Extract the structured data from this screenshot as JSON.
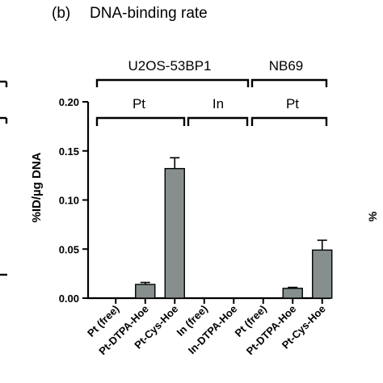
{
  "panel_label": "(b)",
  "title": "DNA-binding rate",
  "groups": {
    "cell_lines": [
      "U2OS-53BP1",
      "NB69"
    ],
    "elements": [
      "Pt",
      "In",
      "Pt"
    ]
  },
  "right_edge_text": "%",
  "colors": {
    "bar": "#868e8e",
    "axis": "#000000"
  },
  "chart_data": {
    "type": "bar",
    "ylabel": "%ID/µg DNA",
    "ylim": [
      0,
      0.2
    ],
    "yticks": [
      0.0,
      0.05,
      0.1,
      0.15,
      0.2
    ],
    "ytick_labels": [
      "0.00",
      "0.05",
      "0.10",
      "0.15",
      "0.20"
    ],
    "categories": [
      "Pt (free)",
      "Pt-DTPA-Hoe",
      "Pt-Cys-Hoe",
      "In (free)",
      "In-DTPA-Hoe",
      "Pt (free)",
      "Pt-DTPA-Hoe",
      "Pt-Cys-Hoe"
    ],
    "values": [
      0.0,
      0.014,
      0.132,
      0.0,
      0.0,
      0.0,
      0.01,
      0.049
    ],
    "errors": [
      0.0,
      0.002,
      0.011,
      0.0,
      0.0,
      0.0,
      0.001,
      0.01
    ]
  }
}
